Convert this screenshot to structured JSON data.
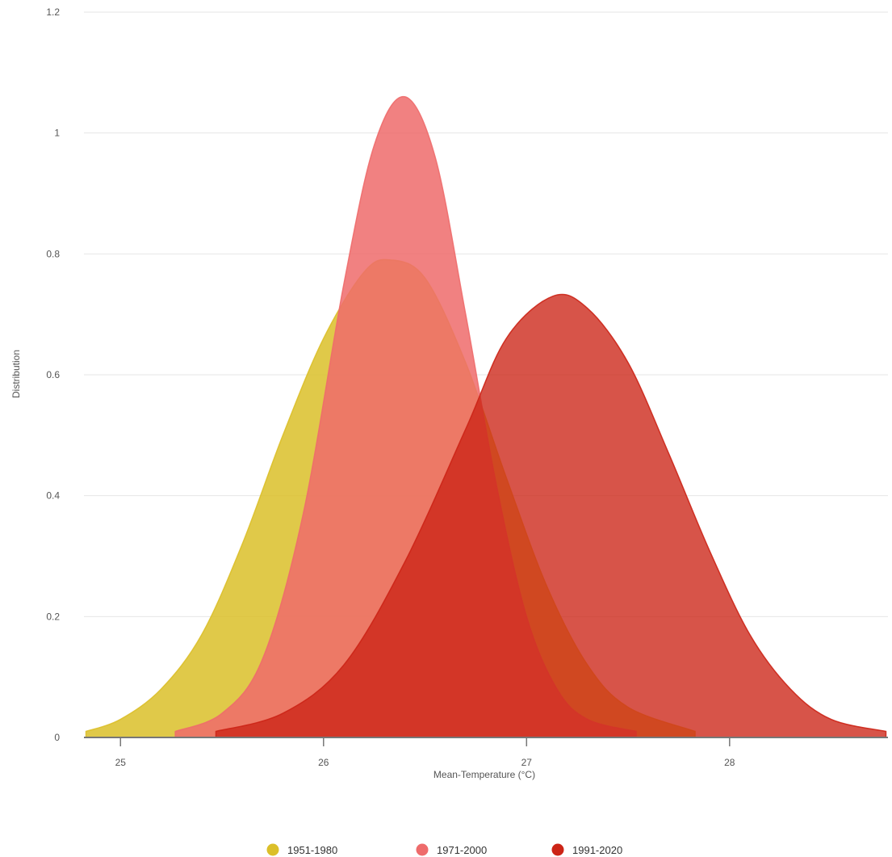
{
  "chart_data": {
    "type": "area",
    "xlabel": "Mean-Temperature (°C)",
    "ylabel": "Distribution",
    "xlim": [
      24.82,
      28.78
    ],
    "ylim": [
      0,
      1.2
    ],
    "x_ticks": [
      25,
      26,
      27,
      28
    ],
    "y_ticks": [
      0,
      0.2,
      0.4,
      0.6,
      0.8,
      1,
      1.2
    ],
    "y_tick_labels": [
      "0",
      "0.2",
      "0.4",
      "0.6",
      "0.8",
      "1",
      "1.2"
    ],
    "x_tick_labels": [
      "25",
      "26",
      "27",
      "28"
    ],
    "grid": "horizontal",
    "legend_position": "bottom",
    "series": [
      {
        "name": "1951-1980",
        "color": "#dbbf29",
        "opacity": 0.85,
        "x": [
          24.83,
          25.0,
          25.2,
          25.4,
          25.6,
          25.8,
          26.0,
          26.2,
          26.33,
          26.5,
          26.7,
          26.9,
          27.1,
          27.3,
          27.5,
          27.83
        ],
        "y": [
          0.01,
          0.03,
          0.08,
          0.17,
          0.32,
          0.5,
          0.66,
          0.77,
          0.79,
          0.76,
          0.62,
          0.43,
          0.25,
          0.12,
          0.05,
          0.01
        ]
      },
      {
        "name": "1971-2000",
        "color": "#ee6b6b",
        "opacity": 0.85,
        "x": [
          25.27,
          25.5,
          25.7,
          25.9,
          26.1,
          26.25,
          26.4,
          26.55,
          26.7,
          26.85,
          27.0,
          27.15,
          27.3,
          27.54
        ],
        "y": [
          0.01,
          0.04,
          0.13,
          0.37,
          0.75,
          0.98,
          1.06,
          0.96,
          0.7,
          0.42,
          0.2,
          0.08,
          0.03,
          0.01
        ]
      },
      {
        "name": "1991-2020",
        "color": "#cc2416",
        "opacity": 0.78,
        "x": [
          25.47,
          25.8,
          26.1,
          26.4,
          26.7,
          26.9,
          27.13,
          27.3,
          27.5,
          27.7,
          27.9,
          28.1,
          28.3,
          28.5,
          28.77
        ],
        "y": [
          0.01,
          0.04,
          0.12,
          0.29,
          0.51,
          0.66,
          0.73,
          0.71,
          0.62,
          0.47,
          0.31,
          0.17,
          0.08,
          0.03,
          0.01
        ]
      }
    ]
  }
}
